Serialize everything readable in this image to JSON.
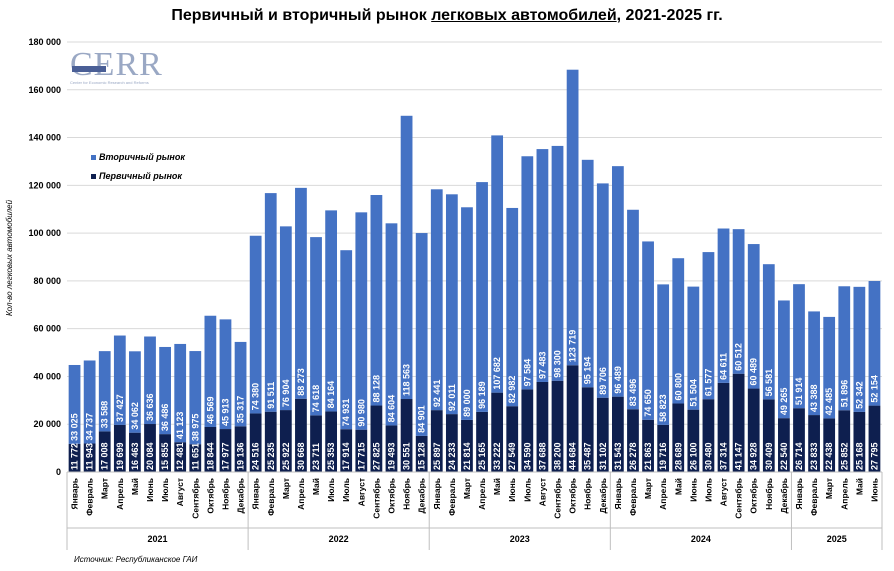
{
  "title": {
    "prefix": "Первичный и вторичный рынок ",
    "underlined": "легковых автомобилей",
    "suffix": ", 2021-2025 гг."
  },
  "source": "Источник: Республиканское ГАИ",
  "logo": {
    "text": "CERR",
    "sub": "Center for Economic Research and Reforms"
  },
  "colors": {
    "secondary": "#4472C4",
    "primary": "#0E1F4F",
    "text": "#000000"
  },
  "chart_data": {
    "type": "bar",
    "stacked": true,
    "ylabel": "Кол-во легковых автомобилей",
    "ylim": [
      0,
      180000
    ],
    "yticks": [
      "0",
      "20 000",
      "40 000",
      "60 000",
      "80 000",
      "100 000",
      "120 000",
      "140 000",
      "160 000",
      "180 000"
    ],
    "legend": {
      "placement": "top-left",
      "entries": [
        "Вторичный рынок",
        "Первичный рынок"
      ]
    },
    "categories": [
      "Январь",
      "Февраль",
      "Март",
      "Апрель",
      "Май",
      "Июнь",
      "Июль",
      "Август",
      "Сентябрь",
      "Октябрь",
      "Ноябрь",
      "Декабрь",
      "Январь",
      "Февраль",
      "Март",
      "Апрель",
      "Май",
      "Июль",
      "Июль",
      "Август",
      "Сентябрь",
      "Октябрь",
      "Ноябрь",
      "Декабрь",
      "Январь",
      "Февраль",
      "Март",
      "Апрель",
      "Май",
      "Июнь",
      "Июль",
      "Август",
      "Сентябрь",
      "Октябрь",
      "Ноябрь",
      "Декабрь",
      "Январь",
      "Февраль",
      "Март",
      "Апрель",
      "Май",
      "Июнь",
      "Июль",
      "Август",
      "Сентябрь",
      "Октябрь",
      "Ноябрь",
      "Декабрь",
      "Январь",
      "Февраль",
      "Март",
      "Апрель",
      "Май",
      "Июнь"
    ],
    "years": [
      {
        "label": "2021",
        "count": 12
      },
      {
        "label": "2022",
        "count": 12
      },
      {
        "label": "2023",
        "count": 12
      },
      {
        "label": "2024",
        "count": 12
      },
      {
        "label": "2025",
        "count": 6
      }
    ],
    "series": [
      {
        "name": "Первичный рынок",
        "values": [
          11772,
          11943,
          17008,
          19699,
          16463,
          20084,
          15855,
          12481,
          11651,
          18844,
          17977,
          19136,
          24516,
          25235,
          25922,
          30668,
          23711,
          25353,
          17914,
          17715,
          27825,
          19493,
          30551,
          15128,
          25897,
          24233,
          21814,
          25165,
          33222,
          27549,
          34590,
          37688,
          38200,
          44684,
          35487,
          31102,
          31543,
          26278,
          21863,
          19716,
          28689,
          26100,
          30480,
          37314,
          41147,
          34928,
          30409,
          22540,
          26714,
          23833,
          22438,
          25852,
          25168,
          27795
        ],
        "labels": [
          "11 772",
          "11 943",
          "17 008",
          "19 699",
          "16 463",
          "20 084",
          "15 855",
          "12 481",
          "11 651",
          "18 844",
          "17 977",
          "19 136",
          "24 516",
          "25 235",
          "25 922",
          "30 668",
          "23 711",
          "25 353",
          "17 914",
          "17 715",
          "27 825",
          "19 493",
          "30 551",
          "15 128",
          "25 897",
          "24 233",
          "21 814",
          "25 165",
          "33 222",
          "27 549",
          "34 590",
          "37 688",
          "38 200",
          "44 684",
          "35 487",
          "31 102",
          "31 543",
          "26 278",
          "21 863",
          "19 716",
          "28 689",
          "26 100",
          "30 480",
          "37 314",
          "41 147",
          "34 928",
          "30 409",
          "22 540",
          "26 714",
          "23 833",
          "22 438",
          "25 852",
          "25 168",
          "27 795"
        ]
      },
      {
        "name": "Вторичный рынок",
        "values": [
          33025,
          34737,
          33588,
          37427,
          34062,
          36636,
          36486,
          41123,
          38975,
          46569,
          45913,
          35317,
          74380,
          91511,
          76904,
          88273,
          74618,
          84164,
          74931,
          90980,
          88128,
          84604,
          118563,
          84901,
          92441,
          92011,
          89000,
          96189,
          107682,
          82982,
          97584,
          97483,
          98300,
          123719,
          95194,
          89706,
          96489,
          83496,
          74650,
          58823,
          60800,
          51504,
          61577,
          64611,
          60512,
          60489,
          56581,
          49265,
          51914,
          43388,
          42485,
          51896,
          52342,
          52154
        ],
        "labels": [
          "33 025",
          "34 737",
          "33 588",
          "37 427",
          "34 062",
          "36 636",
          "36 486",
          "41 123",
          "38 975",
          "46 569",
          "45 913",
          "35 317",
          "74 380",
          "91 511",
          "76 904",
          "88 273",
          "74 618",
          "84 164",
          "74 931",
          "90 980",
          "88 128",
          "84 604",
          "118 563",
          "84 901",
          "92 441",
          "92 011",
          "89 000",
          "96 189",
          "107 682",
          "82 982",
          "97 584",
          "97 483",
          "98 300",
          "123 719",
          "95 194",
          "89 706",
          "96 489",
          "83 496",
          "74 650",
          "58 823",
          "60 800",
          "51 504",
          "61 577",
          "64 611",
          "60 512",
          "60 489",
          "56 581",
          "49 265",
          "51 914",
          "43 388",
          "42 485",
          "51 896",
          "52 342",
          "52 154"
        ]
      }
    ]
  }
}
